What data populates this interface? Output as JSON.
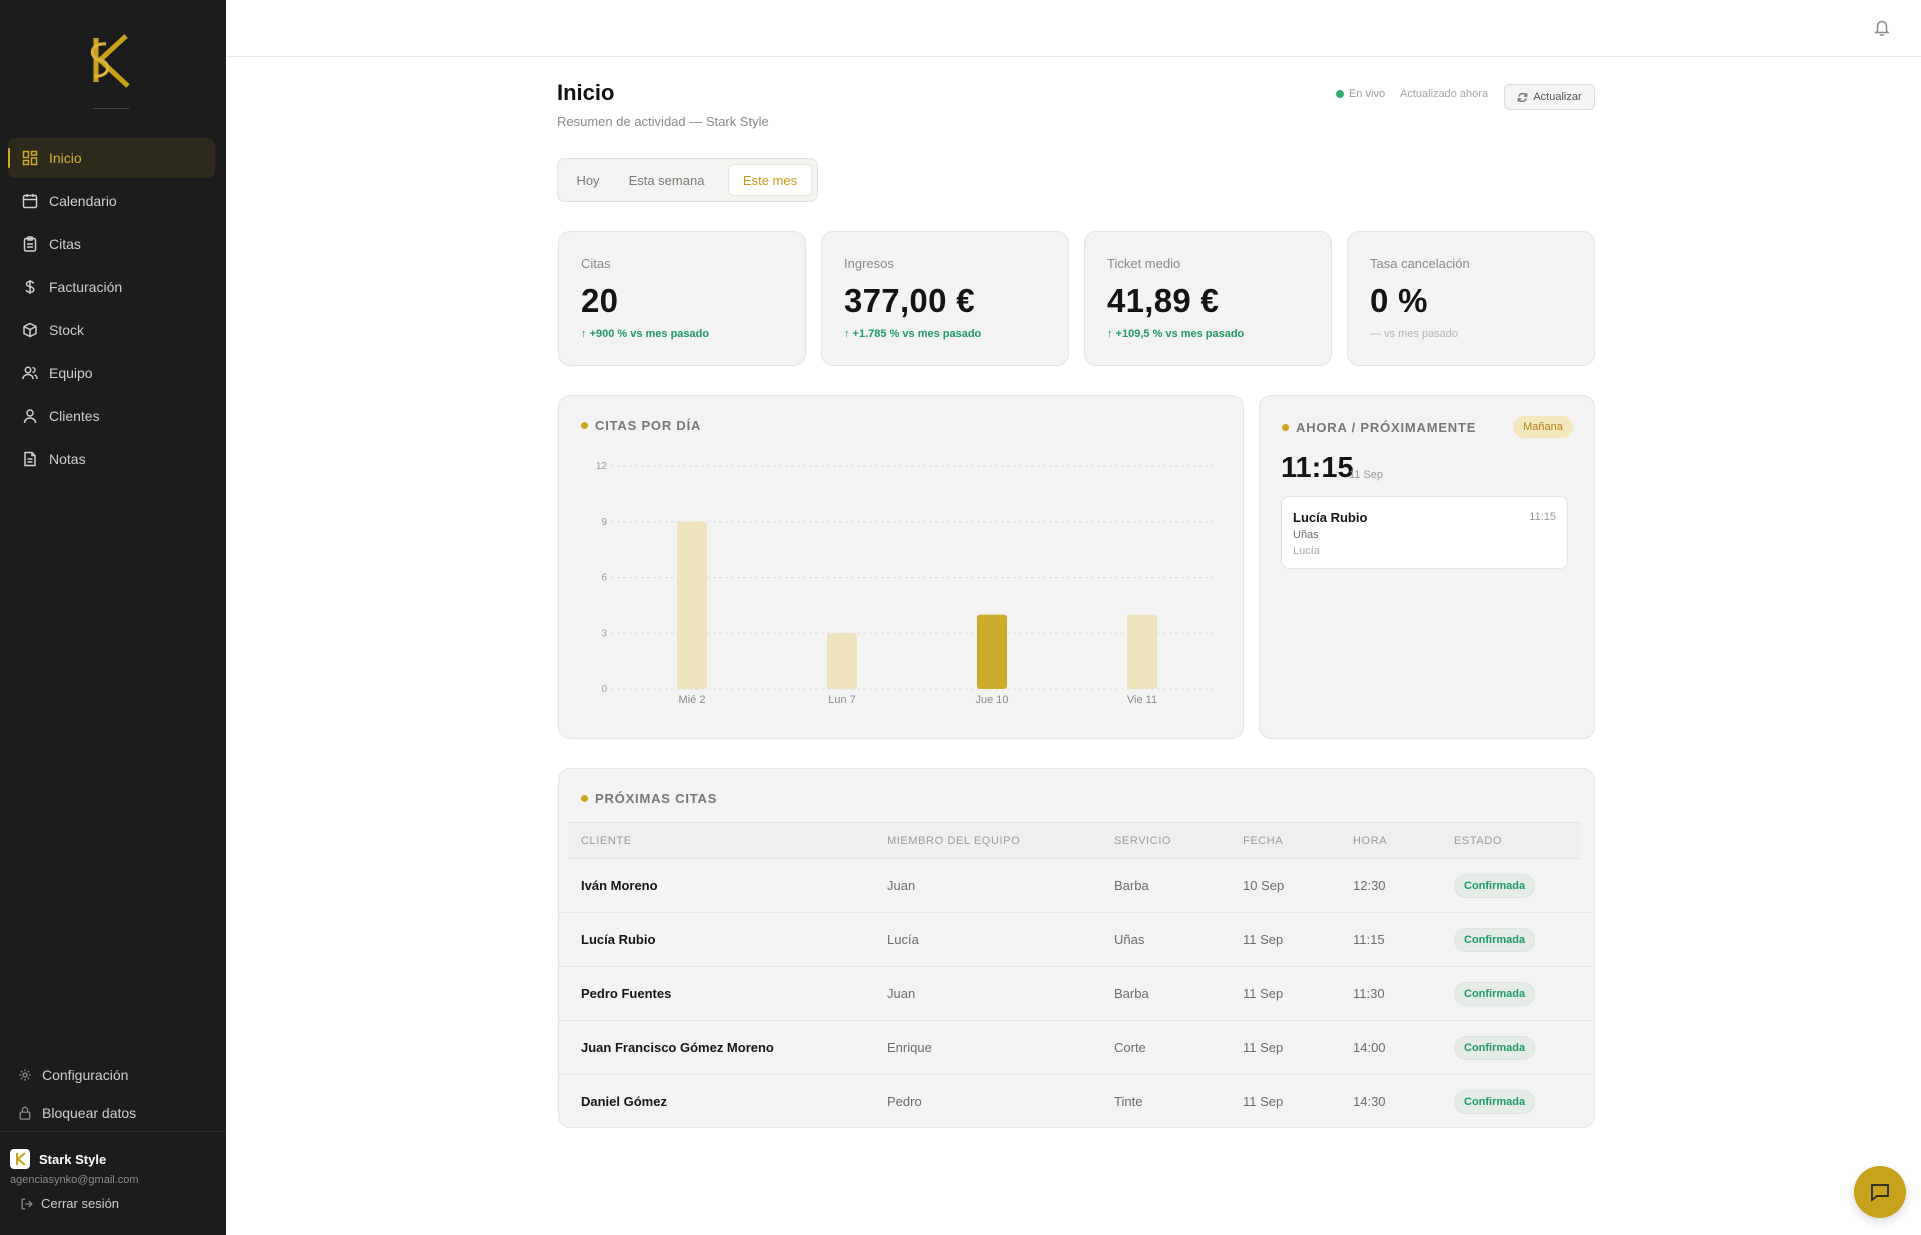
{
  "sidebar": {
    "nav": [
      {
        "label": "Inicio",
        "icon": "dashboard-icon",
        "active": true
      },
      {
        "label": "Calendario",
        "icon": "calendar-icon"
      },
      {
        "label": "Citas",
        "icon": "clipboard-icon"
      },
      {
        "label": "Facturación",
        "icon": "dollar-icon"
      },
      {
        "label": "Stock",
        "icon": "box-icon"
      },
      {
        "label": "Equipo",
        "icon": "team-icon"
      },
      {
        "label": "Clientes",
        "icon": "user-icon"
      },
      {
        "label": "Notas",
        "icon": "notes-icon"
      }
    ],
    "settings_label": "Configuración",
    "lock_label": "Bloquear datos",
    "account": {
      "name": "Stark Style",
      "email": "agenciasynko@gmail.com"
    },
    "logout_label": "Cerrar sesión"
  },
  "header": {
    "title": "Inicio",
    "subtitle": "Resumen de actividad — Stark Style",
    "live_label": "En vivo",
    "updated_label": "Actualizado ahora",
    "refresh_label": "Actualizar"
  },
  "period_tabs": [
    {
      "label": "Hoy"
    },
    {
      "label": "Esta semana"
    },
    {
      "label": "Este mes",
      "active": true
    }
  ],
  "kpis": [
    {
      "label": "Citas",
      "value": "20",
      "delta": "↑ +900 % vs mes pasado"
    },
    {
      "label": "Ingresos",
      "value": "377,00 €",
      "delta": "↑ +1.785 % vs mes pasado"
    },
    {
      "label": "Ticket medio",
      "value": "41,89 €",
      "delta": "↑ +109,5 % vs mes pasado"
    },
    {
      "label": "Tasa cancelación",
      "value": "0 %",
      "delta": "— vs mes pasado"
    }
  ],
  "chart_title": "CITAS POR DÍA",
  "chart_data": {
    "type": "bar",
    "categories": [
      "Mié 2",
      "Lun 7",
      "Jue 10",
      "Vie 11"
    ],
    "values": [
      9,
      3,
      4,
      4
    ],
    "highlight_index": 2,
    "ylim": [
      0,
      12
    ],
    "yticks": [
      "0",
      "3",
      "6",
      "9",
      "12"
    ],
    "title": "CITAS POR DÍA",
    "xlabel": "",
    "ylabel": "",
    "grid": true,
    "colors": {
      "bar": "#efe3bd",
      "highlight": "#cdac2c"
    }
  },
  "upcoming": {
    "title": "AHORA / PRÓXIMAMENTE",
    "badge": "Mañana",
    "time": "11:15",
    "date": "11 Sep",
    "appointment": {
      "client": "Lucía Rubio",
      "time": "11:15",
      "service": "Uñas",
      "staff": "Lucía"
    }
  },
  "table": {
    "title": "PRÓXIMAS CITAS",
    "columns": [
      "CLIENTE",
      "MIEMBRO DEL EQUIPO",
      "SERVICIO",
      "FECHA",
      "HORA",
      "ESTADO"
    ],
    "rows": [
      {
        "cliente": "Iván Moreno",
        "miembro": "Juan",
        "servicio": "Barba",
        "fecha": "10 Sep",
        "hora": "12:30",
        "estado": "Confirmada"
      },
      {
        "cliente": "Lucía Rubio",
        "miembro": "Lucía",
        "servicio": "Uñas",
        "fecha": "11 Sep",
        "hora": "11:15",
        "estado": "Confirmada"
      },
      {
        "cliente": "Pedro Fuentes",
        "miembro": "Juan",
        "servicio": "Barba",
        "fecha": "11 Sep",
        "hora": "11:30",
        "estado": "Confirmada"
      },
      {
        "cliente": "Juan Francisco Gómez Moreno",
        "miembro": "Enrique",
        "servicio": "Corte",
        "fecha": "11 Sep",
        "hora": "14:00",
        "estado": "Confirmada"
      },
      {
        "cliente": "Daniel Gómez",
        "miembro": "Pedro",
        "servicio": "Tinte",
        "fecha": "11 Sep",
        "hora": "14:30",
        "estado": "Confirmada"
      }
    ]
  },
  "colors": {
    "accent": "#c9a21c",
    "sidebar_bg": "#1b1c1b",
    "success": "#1e9a63"
  }
}
